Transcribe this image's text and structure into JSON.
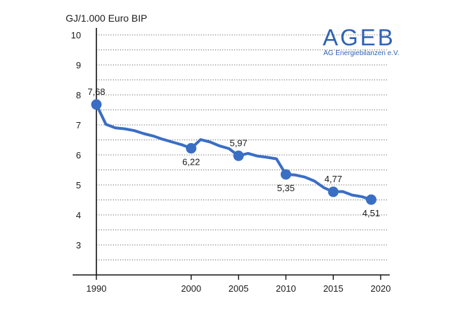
{
  "chart_data": {
    "type": "line",
    "ylabel": "GJ/1.000 Euro BIP",
    "xlim": [
      1990,
      2020
    ],
    "ylim": [
      2,
      10
    ],
    "x_ticks": [
      1990,
      2000,
      2005,
      2010,
      2015,
      2020
    ],
    "y_ticks": [
      3,
      4,
      5,
      6,
      7,
      8,
      9,
      10
    ],
    "grid": "horizontal-dotted",
    "series": [
      {
        "color": "#3a6ec5",
        "x": [
          1990,
          1991,
          1992,
          1993,
          1994,
          1995,
          1996,
          1997,
          1998,
          1999,
          2000,
          2001,
          2002,
          2003,
          2004,
          2005,
          2006,
          2007,
          2008,
          2009,
          2010,
          2011,
          2012,
          2013,
          2014,
          2015,
          2016,
          2017,
          2018,
          2019
        ],
        "y": [
          7.68,
          7.02,
          6.9,
          6.87,
          6.81,
          6.71,
          6.63,
          6.52,
          6.43,
          6.34,
          6.22,
          6.51,
          6.43,
          6.3,
          6.21,
          5.97,
          6.05,
          5.96,
          5.92,
          5.87,
          5.35,
          5.33,
          5.26,
          5.13,
          4.91,
          4.77,
          4.78,
          4.66,
          4.61,
          4.51
        ]
      }
    ],
    "markers": [
      {
        "x": 1990,
        "y": 7.68,
        "label": "7,68",
        "pos": "above"
      },
      {
        "x": 2000,
        "y": 6.22,
        "label": "6,22",
        "pos": "below"
      },
      {
        "x": 2005,
        "y": 5.97,
        "label": "5,97",
        "pos": "above"
      },
      {
        "x": 2010,
        "y": 5.35,
        "label": "5,35",
        "pos": "below"
      },
      {
        "x": 2015,
        "y": 4.77,
        "label": "4,77",
        "pos": "above"
      },
      {
        "x": 2019,
        "y": 4.51,
        "label": "4,51",
        "pos": "below"
      }
    ]
  },
  "logo": {
    "name": "AGEB",
    "subtitle": "AG Energiebilanzen e.V."
  }
}
